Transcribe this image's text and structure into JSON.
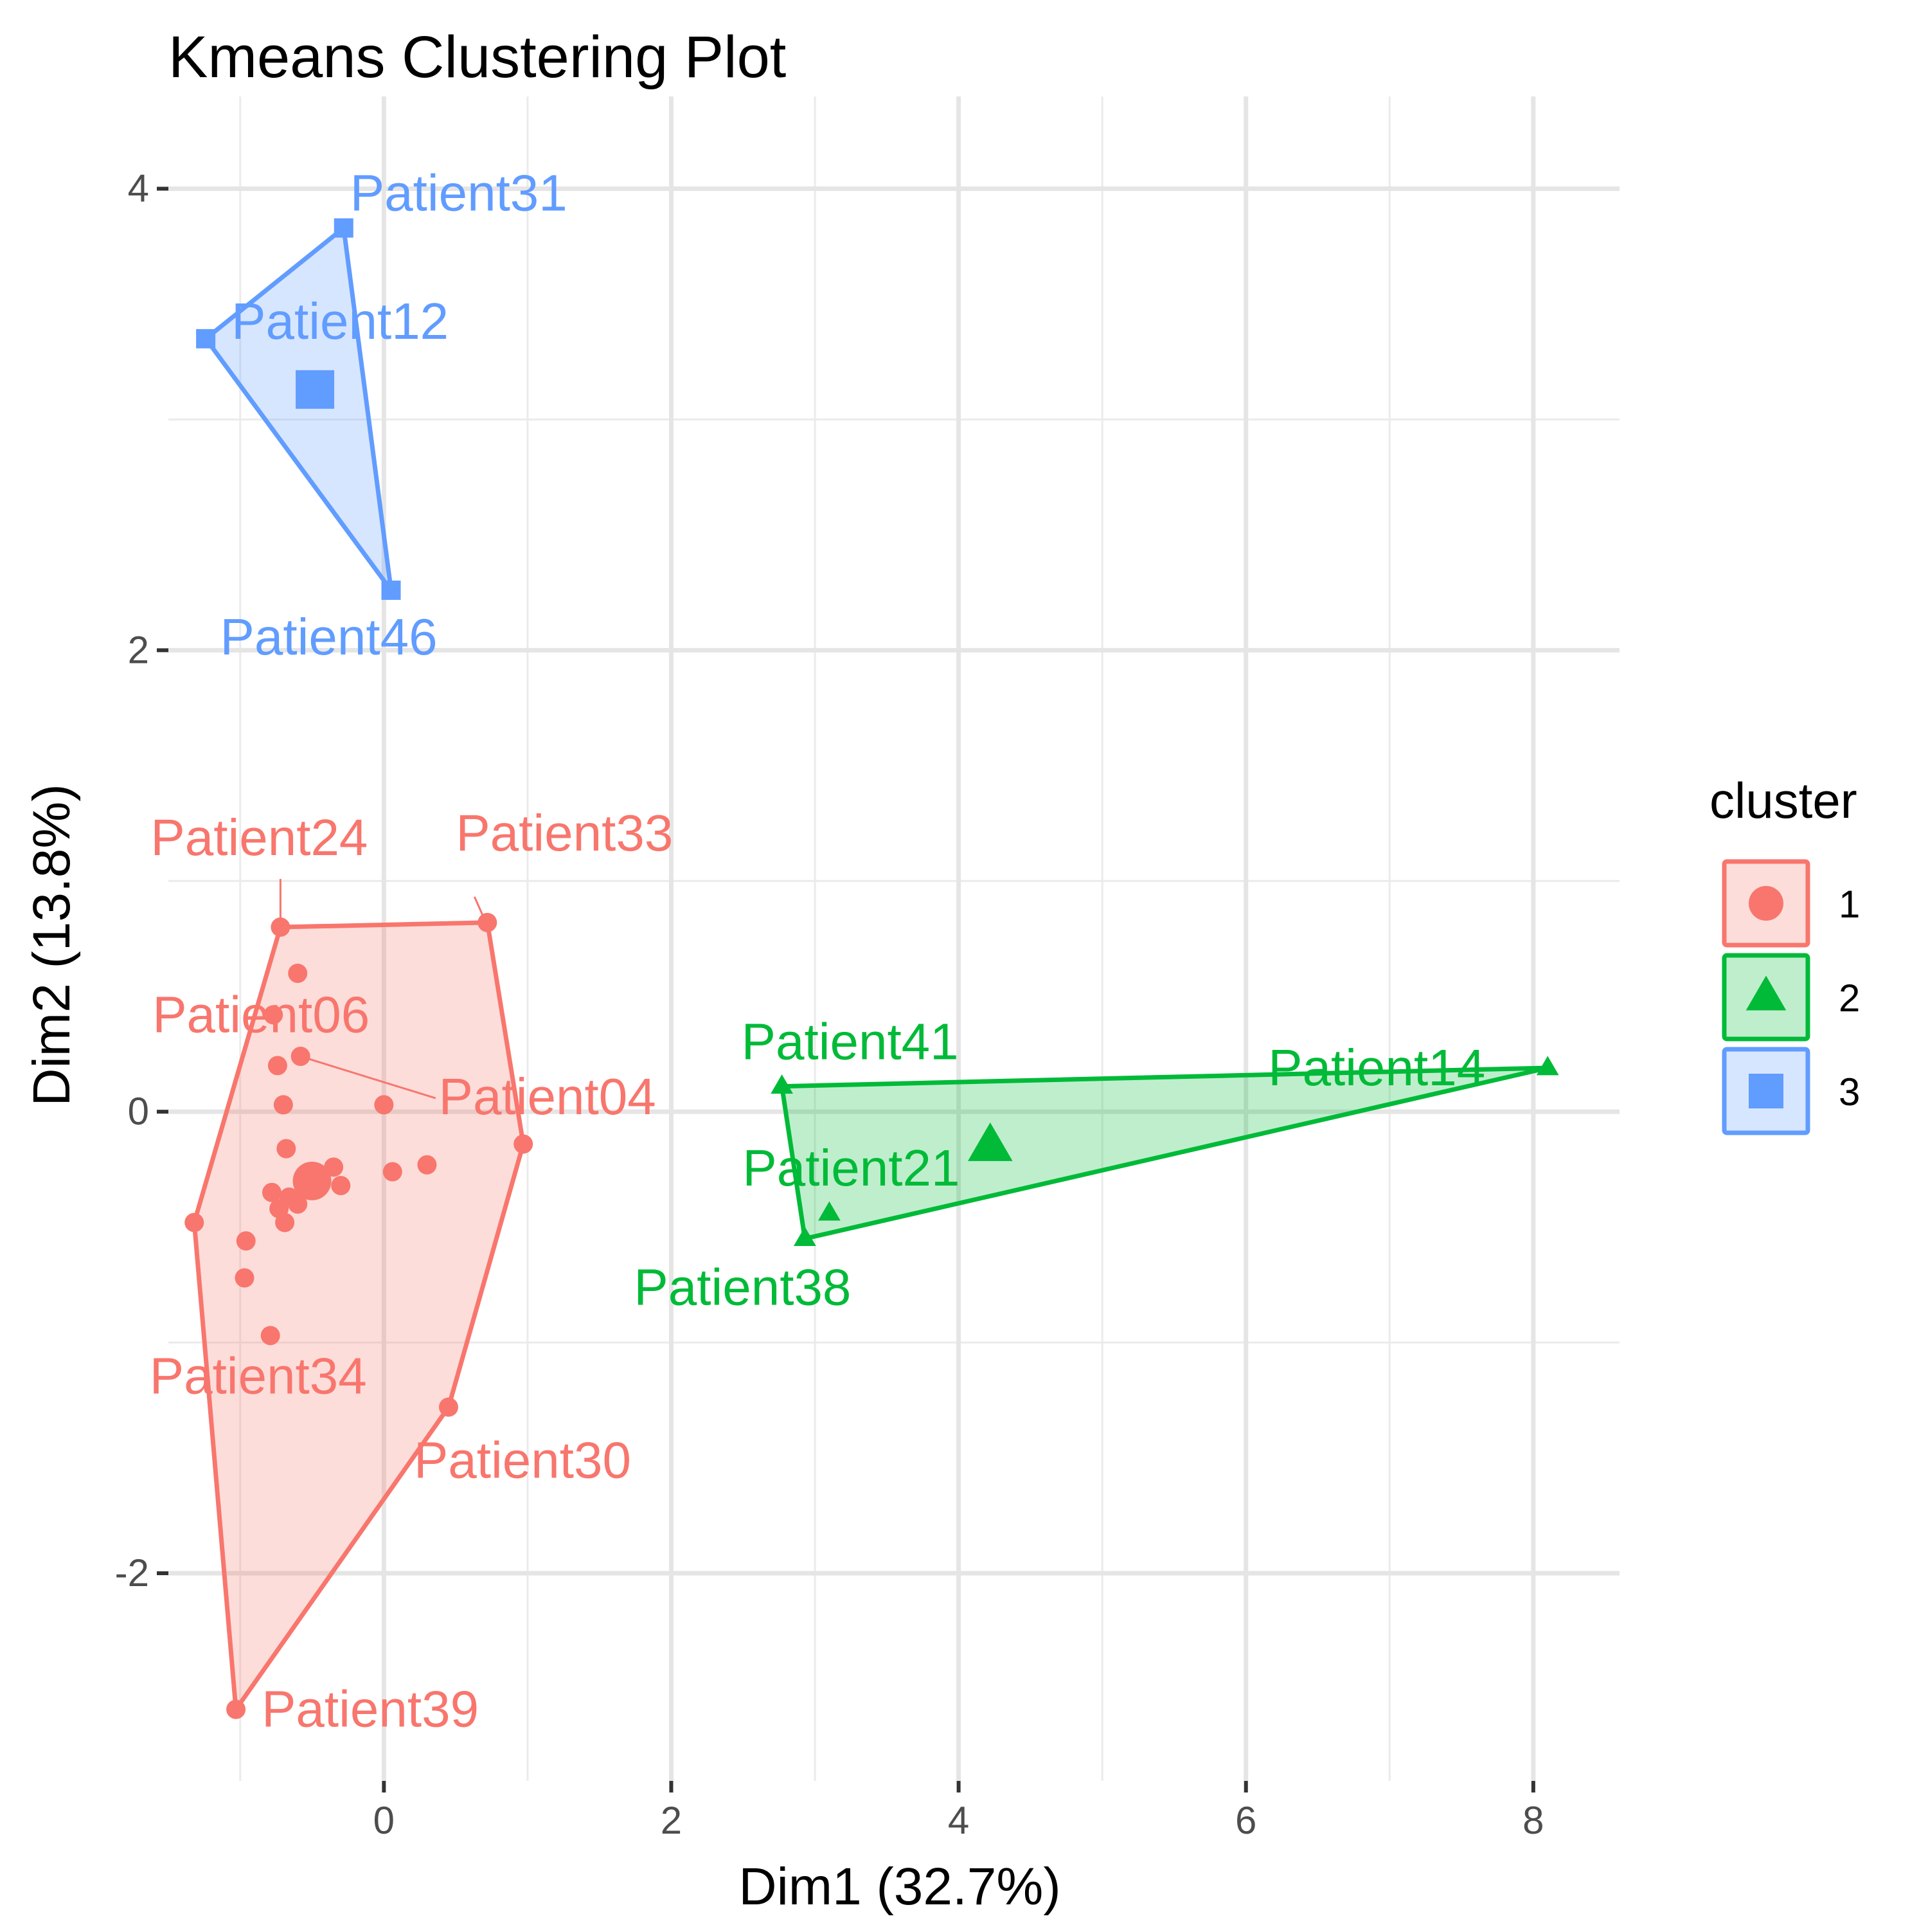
{
  "chart_data": {
    "type": "scatter",
    "title": "Kmeans Clustering Plot",
    "xlabel": "Dim1 (32.7%)",
    "ylabel": "Dim2 (13.8%)",
    "xlim": [
      -1.5,
      8.6
    ],
    "ylim": [
      -2.9,
      4.4
    ],
    "x_ticks": [
      0,
      2,
      4,
      6,
      8
    ],
    "y_ticks": [
      -2,
      0,
      2,
      4
    ],
    "x_tick_labels": [
      "0",
      "2",
      "4",
      "6",
      "8"
    ],
    "y_tick_labels": [
      "-2",
      "0",
      "2",
      "4"
    ],
    "grid": true,
    "legend": {
      "title": "cluster",
      "placement": "right",
      "entries": [
        {
          "label": "1",
          "cluster": "1"
        },
        {
          "label": "2",
          "cluster": "2"
        },
        {
          "label": "3",
          "cluster": "3"
        }
      ]
    },
    "clusters": [
      {
        "name": "1",
        "color": "#F8766D",
        "shape": "circle",
        "centroid": [
          -0.5,
          -0.3
        ],
        "hull": [
          [
            -0.72,
            0.8
          ],
          [
            0.72,
            0.82
          ],
          [
            0.97,
            -0.14
          ],
          [
            0.45,
            -1.28
          ],
          [
            -1.03,
            -2.59
          ],
          [
            -1.32,
            -0.48
          ]
        ],
        "points": [
          {
            "x": -0.72,
            "y": 0.8,
            "label": "Patient24"
          },
          {
            "x": 0.72,
            "y": 0.82,
            "label": "Patient33"
          },
          {
            "x": -0.6,
            "y": 0.6
          },
          {
            "x": -0.77,
            "y": 0.42,
            "label": "Patient06"
          },
          {
            "x": -0.58,
            "y": 0.24,
            "label": "Patient04"
          },
          {
            "x": -0.74,
            "y": 0.2
          },
          {
            "x": -0.7,
            "y": 0.03
          },
          {
            "x": 0.0,
            "y": 0.03
          },
          {
            "x": 0.97,
            "y": -0.14
          },
          {
            "x": -0.68,
            "y": -0.16
          },
          {
            "x": -0.35,
            "y": -0.24
          },
          {
            "x": 0.3,
            "y": -0.23
          },
          {
            "x": 0.06,
            "y": -0.26
          },
          {
            "x": -0.3,
            "y": -0.32
          },
          {
            "x": -0.78,
            "y": -0.35
          },
          {
            "x": -0.66,
            "y": -0.37
          },
          {
            "x": -0.6,
            "y": -0.4
          },
          {
            "x": -0.73,
            "y": -0.42
          },
          {
            "x": -0.69,
            "y": -0.48
          },
          {
            "x": -1.32,
            "y": -0.48
          },
          {
            "x": -0.96,
            "y": -0.56
          },
          {
            "x": -0.97,
            "y": -0.72
          },
          {
            "x": -0.79,
            "y": -0.97,
            "label": "Patient34"
          },
          {
            "x": 0.45,
            "y": -1.28,
            "label": "Patient30"
          },
          {
            "x": -1.03,
            "y": -2.59,
            "label": "Patient39"
          }
        ]
      },
      {
        "name": "2",
        "color": "#00BA38",
        "shape": "triangle",
        "centroid": [
          4.22,
          -0.15
        ],
        "hull": [
          [
            2.77,
            0.11
          ],
          [
            8.1,
            0.19
          ],
          [
            2.93,
            -0.55
          ]
        ],
        "points": [
          {
            "x": 2.77,
            "y": 0.11,
            "label": "Patient41"
          },
          {
            "x": 8.1,
            "y": 0.19,
            "label": "Patient14"
          },
          {
            "x": 3.1,
            "y": -0.44,
            "label": "Patient21"
          },
          {
            "x": 2.93,
            "y": -0.55,
            "label": "Patient38"
          }
        ]
      },
      {
        "name": "3",
        "color": "#619CFF",
        "shape": "square",
        "centroid": [
          -0.48,
          3.13
        ],
        "hull": [
          [
            -0.28,
            3.83
          ],
          [
            -1.24,
            3.35
          ],
          [
            0.05,
            2.26
          ]
        ],
        "points": [
          {
            "x": -0.28,
            "y": 3.83,
            "label": "Patient31"
          },
          {
            "x": -1.24,
            "y": 3.35,
            "label": "Patient12"
          },
          {
            "x": 0.05,
            "y": 2.26,
            "label": "Patient46"
          }
        ]
      }
    ]
  }
}
